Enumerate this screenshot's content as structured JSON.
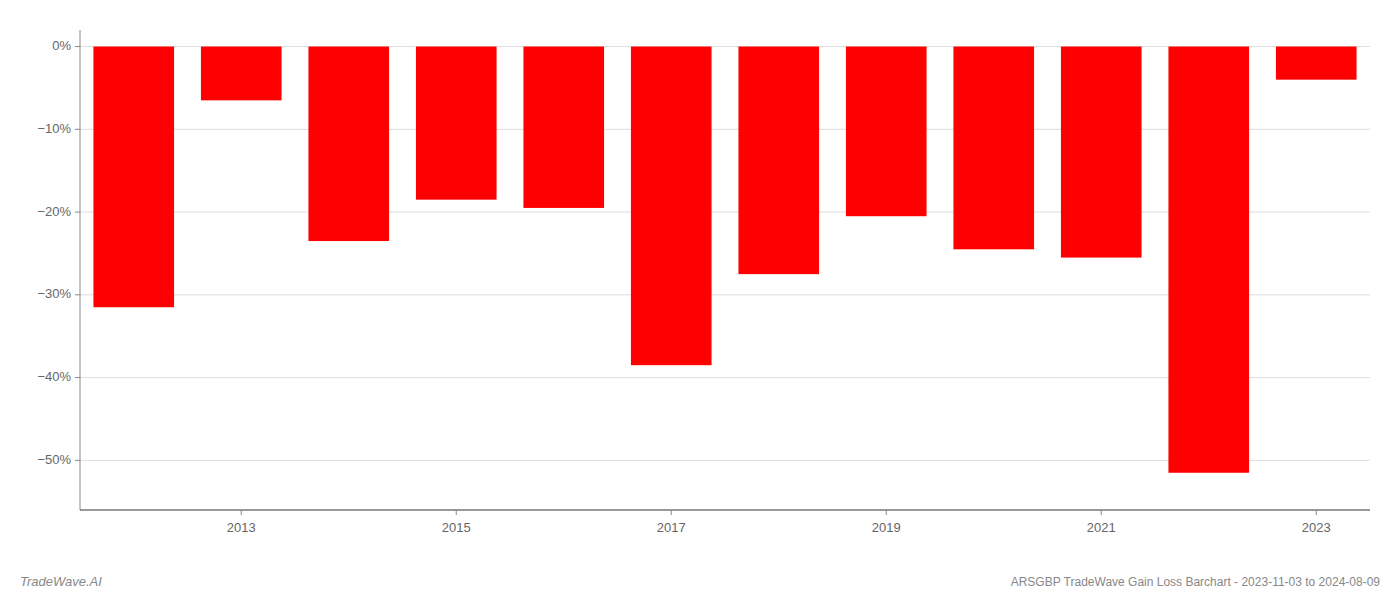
{
  "chart_data": {
    "type": "bar",
    "categories": [
      null,
      "2013",
      null,
      "2015",
      null,
      "2017",
      null,
      "2019",
      null,
      "2021",
      null,
      "2023"
    ],
    "values": [
      -31.5,
      -6.5,
      -23.5,
      -18.5,
      -19.5,
      -38.5,
      -27.5,
      -20.5,
      -24.5,
      -25.5,
      -51.5,
      -4.0
    ],
    "color": "#ff0000",
    "ylim": [
      -56,
      2
    ],
    "yticks": [
      {
        "value": 0,
        "label": "0%"
      },
      {
        "value": -10,
        "label": "−10%"
      },
      {
        "value": -20,
        "label": "−20%"
      },
      {
        "value": -30,
        "label": "−30%"
      },
      {
        "value": -40,
        "label": "−40%"
      },
      {
        "value": -50,
        "label": "−50%"
      }
    ],
    "grid": true,
    "annotations": [
      "TradeWave.AI",
      "ARSGBP TradeWave Gain Loss Barchart - 2023-11-03 to 2024-08-09"
    ]
  }
}
